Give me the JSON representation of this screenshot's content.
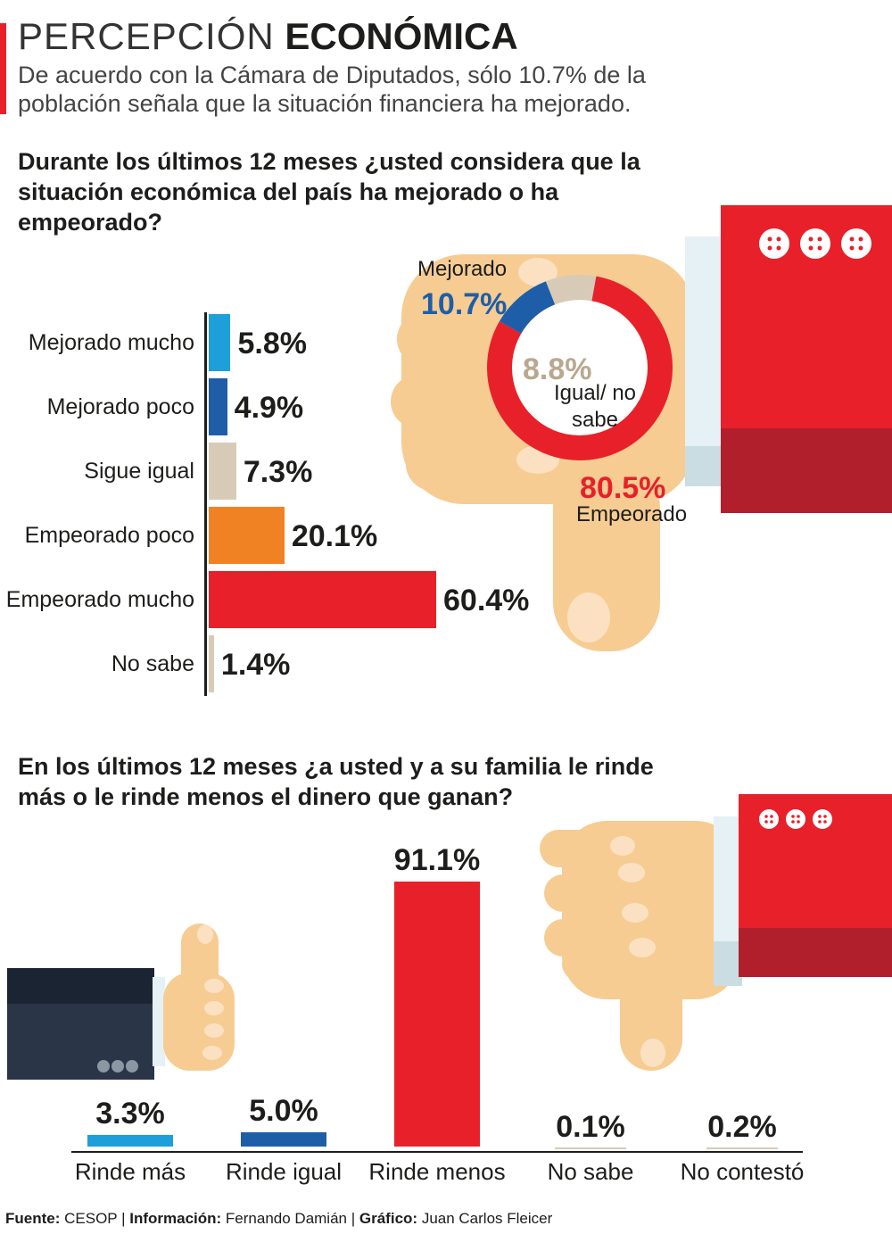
{
  "header": {
    "title_light": "PERCEPCIÓN",
    "title_bold": "ECONÓMICA",
    "subtitle": "De acuerdo con la Cámara de Diputados, sólo 10.7% de la población señala que la situación financiera ha mejorado."
  },
  "colors": {
    "light_blue": "#1e9fd9",
    "dark_blue": "#1e5ea8",
    "beige": "#d7cbb8",
    "orange": "#f08223",
    "red": "#e8202a",
    "skin": "#f6cc92",
    "sleeve_red": "#e8202a",
    "sleeve_dark_red": "#b11f2d",
    "sleeve_navy": "#2a3547"
  },
  "icons": [
    "thumbs-down-hand-icon",
    "thumbs-up-hand-icon",
    "three-buttons-icon"
  ],
  "chart_data": [
    {
      "type": "bar",
      "orientation": "horizontal",
      "title": "Durante los últimos 12 meses ¿usted considera que la situación económica del país ha mejorado o ha empeorado?",
      "categories": [
        "Mejorado mucho",
        "Mejorado poco",
        "Sigue igual",
        "Empeorado poco",
        "Empeorado mucho",
        "No sabe"
      ],
      "values": [
        5.8,
        4.9,
        7.3,
        20.1,
        60.4,
        1.4
      ],
      "value_labels": [
        "5.8%",
        "4.9%",
        "7.3%",
        "20.1%",
        "60.4%",
        "1.4%"
      ],
      "bar_colors": [
        "#1e9fd9",
        "#1e5ea8",
        "#d7cbb8",
        "#f08223",
        "#e8202a",
        "#d7cbb8"
      ],
      "unit": "%",
      "grid": false
    },
    {
      "type": "pie",
      "donut": true,
      "labels": [
        "Mejorado",
        "Igual/ no sabe",
        "Empeorado"
      ],
      "values": [
        10.7,
        8.8,
        80.5
      ],
      "value_labels": [
        "10.7%",
        "8.8%",
        "80.5%"
      ],
      "colors": [
        "#1e5ea8",
        "#d7cbb8",
        "#e8202a"
      ]
    },
    {
      "type": "bar",
      "orientation": "vertical",
      "title": "En los últimos 12 meses ¿a usted y a su familia le rinde más o le rinde menos el dinero que ganan?",
      "categories": [
        "Rinde más",
        "Rinde igual",
        "Rinde menos",
        "No sabe",
        "No contestó"
      ],
      "values": [
        3.3,
        5.0,
        91.1,
        0.1,
        0.2
      ],
      "value_labels": [
        "3.3%",
        "5.0%",
        "91.1%",
        "0.1%",
        "0.2%"
      ],
      "bar_colors": [
        "#1e9fd9",
        "#1e5ea8",
        "#e8202a",
        "#d7cbb8",
        "#d7cbb8"
      ],
      "unit": "%",
      "grid": false
    }
  ],
  "footer": {
    "fuente_label": "Fuente:",
    "fuente_value": "CESOP",
    "info_label": "Información:",
    "info_value": "Fernando Damián",
    "grafico_label": "Gráfico:",
    "grafico_value": "Juan Carlos Fleicer",
    "separator": "|"
  }
}
